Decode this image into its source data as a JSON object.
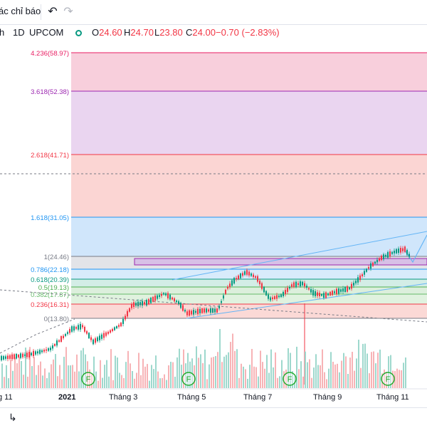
{
  "toolbar": {
    "indicators_label": "ác chỉ báo",
    "undo_icon": "undo-icon",
    "redo_icon": "redo-icon"
  },
  "legend": {
    "symbol_fragment": "h",
    "interval": "1D",
    "exchange": "UPCOM",
    "open_label": "O",
    "open": "24.60",
    "high_label": "H",
    "high": "24.70",
    "low_label": "L",
    "low": "23.80",
    "close_label": "C",
    "close": "24.00",
    "change": "−0.70 (−2.83%)",
    "colors": {
      "down": "#f23645",
      "up": "#089981",
      "status_dot": "#089981",
      "text": "#131722"
    }
  },
  "fib": {
    "levels": [
      {
        "ratio": 4.236,
        "price": 58.97,
        "label": "4.236(58.97)",
        "color": "#e91e63",
        "fill": "#f8cfdc"
      },
      {
        "ratio": 3.618,
        "price": 52.38,
        "label": "3.618(52.38)",
        "color": "#9c27b0",
        "fill": "#ead5f0"
      },
      {
        "ratio": 2.618,
        "price": 41.71,
        "label": "2.618(41.71)",
        "color": "#f23645",
        "fill": "#fbd5d3"
      },
      {
        "ratio": 1.618,
        "price": 31.05,
        "label": "1.618(31.05)",
        "color": "#2196f3",
        "fill": "#d0e6fb"
      },
      {
        "ratio": 1,
        "price": 24.46,
        "label": "1(24.46)",
        "color": "#787b86",
        "fill": "#e3e4e8"
      },
      {
        "ratio": 0.786,
        "price": 22.18,
        "label": "0.786(22.18)",
        "color": "#2196f3",
        "fill": "#d8ebfb"
      },
      {
        "ratio": 0.618,
        "price": 20.39,
        "label": "0.618(20.39)",
        "color": "#089981",
        "fill": "#d3ede6"
      },
      {
        "ratio": 0.5,
        "price": 19.13,
        "label": "0.5(19.13)",
        "color": "#4caf50",
        "fill": "#dcefdc"
      },
      {
        "ratio": 0.382,
        "price": 17.87,
        "label": "0.382(17.87)",
        "color": "#66bb6a",
        "fill": "#e0f2df"
      },
      {
        "ratio": 0.236,
        "price": 16.31,
        "label": "0.236(16.31)",
        "color": "#f23645",
        "fill": "#fbd9d6"
      },
      {
        "ratio": 0,
        "price": 13.8,
        "label": "0(13.80)",
        "color": "#787b86",
        "fill": "#ffffff"
      }
    ]
  },
  "time_axis": {
    "labels": [
      "g 11",
      "2021",
      "Tháng 3",
      "Tháng 5",
      "Tháng 7",
      "Tháng 9",
      "Tháng 11"
    ]
  },
  "dividend_markers": [
    "F",
    "F",
    "F",
    "F"
  ],
  "bottombar": {
    "reset_icon": "go-to-realtime-icon"
  }
}
